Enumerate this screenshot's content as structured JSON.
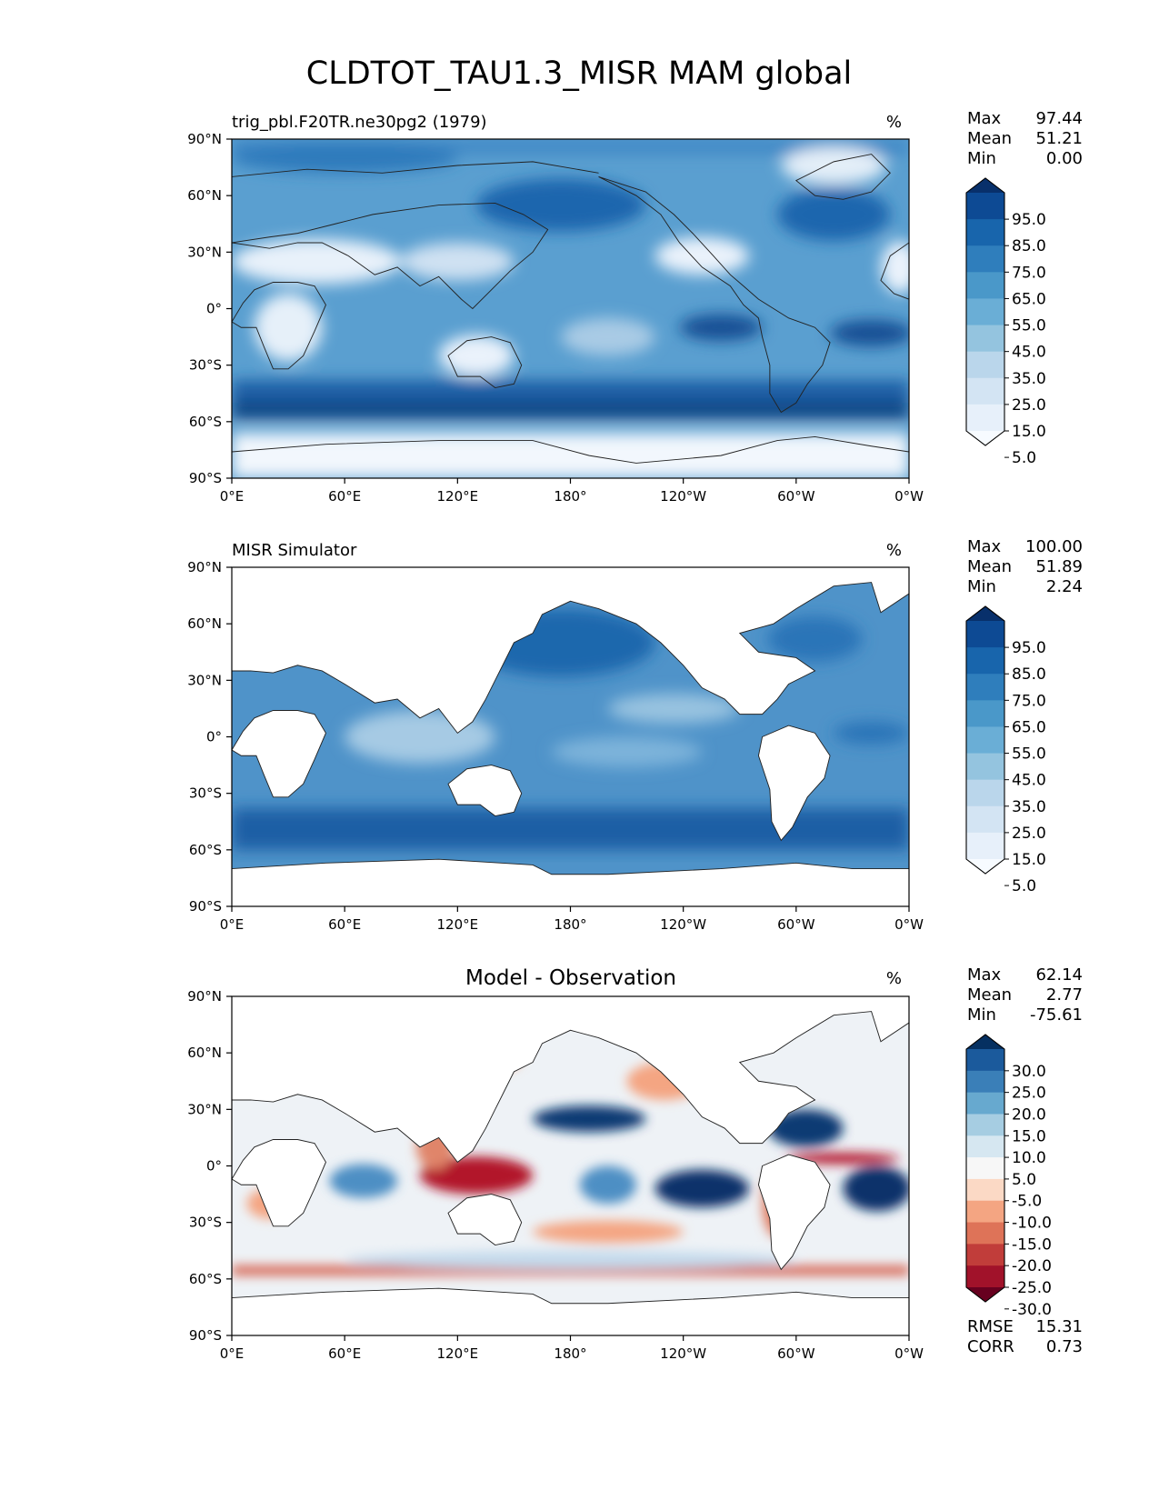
{
  "figure_title": "CLDTOT_TAU1.3_MISR MAM global",
  "chart_data": [
    {
      "type": "heatmap",
      "title": "",
      "left_title": "trig_pbl.F20TR.ne30pg2 (1979)",
      "units": "%",
      "projection": "PlateCarree",
      "xlim": [
        0,
        360
      ],
      "ylim": [
        -90,
        90
      ],
      "x_ticks": [
        "0°E",
        "60°E",
        "120°E",
        "180°",
        "120°W",
        "60°W",
        "0°W"
      ],
      "y_ticks": [
        "90°N",
        "60°N",
        "30°N",
        "0°",
        "30°S",
        "60°S",
        "90°S"
      ],
      "stats": [
        {
          "label": "Max",
          "value": "97.44"
        },
        {
          "label": "Mean",
          "value": "51.21"
        },
        {
          "label": "Min",
          "value": "0.00"
        }
      ],
      "colormap": "Blues",
      "colorbar_levels": [
        "95.0",
        "85.0",
        "75.0",
        "65.0",
        "55.0",
        "45.0",
        "35.0",
        "25.0",
        "15.0",
        "5.0"
      ],
      "colorbar_colors": [
        "#08306b",
        "#0d4a94",
        "#1865ac",
        "#2f7ebc",
        "#4a98c9",
        "#6aaed6",
        "#94c4df",
        "#bad6eb",
        "#d3e4f3",
        "#e7f0fa",
        "#f7fbff"
      ]
    },
    {
      "type": "heatmap",
      "title": "",
      "left_title": "MISR Simulator",
      "units": "%",
      "projection": "PlateCarree",
      "xlim": [
        0,
        360
      ],
      "ylim": [
        -90,
        90
      ],
      "x_ticks": [
        "0°E",
        "60°E",
        "120°E",
        "180°",
        "120°W",
        "60°W",
        "0°W"
      ],
      "y_ticks": [
        "90°N",
        "60°N",
        "30°N",
        "0°",
        "30°S",
        "60°S",
        "90°S"
      ],
      "stats": [
        {
          "label": "Max",
          "value": "100.00"
        },
        {
          "label": "Mean",
          "value": "51.89"
        },
        {
          "label": "Min",
          "value": "2.24"
        }
      ],
      "colormap": "Blues",
      "colorbar_levels": [
        "95.0",
        "85.0",
        "75.0",
        "65.0",
        "55.0",
        "45.0",
        "35.0",
        "25.0",
        "15.0",
        "5.0"
      ],
      "colorbar_colors": [
        "#08306b",
        "#0d4a94",
        "#1865ac",
        "#2f7ebc",
        "#4a98c9",
        "#6aaed6",
        "#94c4df",
        "#bad6eb",
        "#d3e4f3",
        "#e7f0fa",
        "#f7fbff"
      ]
    },
    {
      "type": "heatmap",
      "title": "Model - Observation",
      "left_title": "",
      "units": "%",
      "projection": "PlateCarree",
      "xlim": [
        0,
        360
      ],
      "ylim": [
        -90,
        90
      ],
      "x_ticks": [
        "0°E",
        "60°E",
        "120°E",
        "180°",
        "120°W",
        "60°W",
        "0°W"
      ],
      "y_ticks": [
        "90°N",
        "60°N",
        "30°N",
        "0°",
        "30°S",
        "60°S",
        "90°S"
      ],
      "stats": [
        {
          "label": "Max",
          "value": "62.14"
        },
        {
          "label": "Mean",
          "value": "2.77"
        },
        {
          "label": "Min",
          "value": "-75.61"
        }
      ],
      "colormap": "RdBu",
      "colorbar_levels": [
        "30.0",
        "25.0",
        "20.0",
        "15.0",
        "10.0",
        "5.0",
        "-5.0",
        "-10.0",
        "-15.0",
        "-20.0",
        "-25.0",
        "-30.0"
      ],
      "colorbar_colors": [
        "#053061",
        "#1b5a9c",
        "#3a7fb8",
        "#67a9cf",
        "#a6cde2",
        "#d6e7f1",
        "#f7f7f7",
        "#fbd9c5",
        "#f4a582",
        "#de7358",
        "#c13d3a",
        "#a1122a",
        "#67001f"
      ],
      "footer_stats": [
        {
          "label": "RMSE",
          "value": "15.31"
        },
        {
          "label": "CORR",
          "value": "0.73"
        }
      ]
    }
  ]
}
